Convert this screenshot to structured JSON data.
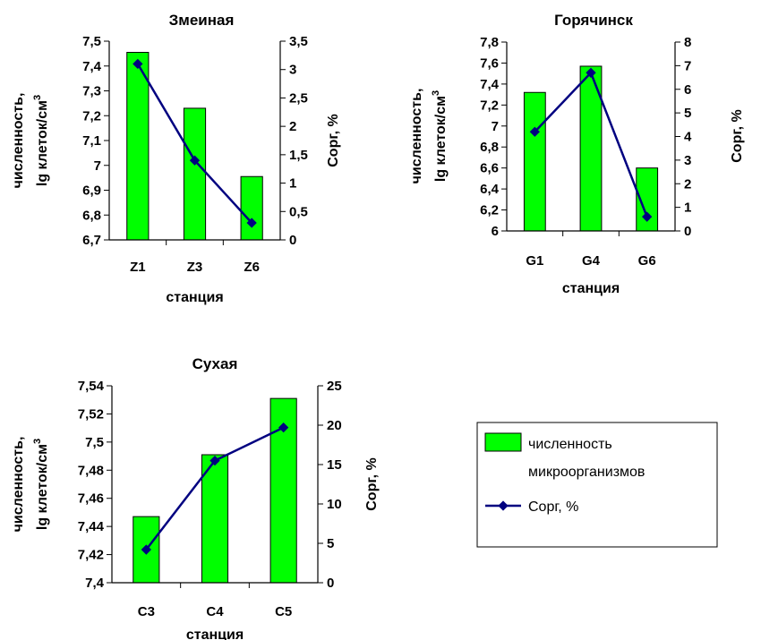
{
  "chart_data": [
    {
      "type": "bar",
      "title": "Змеиная",
      "xlabel": "станция",
      "ylabel_lines": [
        "численность,",
        "lg клеток/см",
        "3"
      ],
      "y2label": "Сорг, %",
      "categories": [
        "Z1",
        "Z3",
        "Z6"
      ],
      "ylim": [
        6.7,
        7.5
      ],
      "yticks": [
        "6,7",
        "6,8",
        "6,9",
        "7",
        "7,1",
        "7,2",
        "7,3",
        "7,4",
        "7,5"
      ],
      "y2lim": [
        0,
        3.5
      ],
      "y2ticks": [
        "0",
        "0,5",
        "1",
        "1,5",
        "2",
        "2,5",
        "3",
        "3,5"
      ],
      "series": [
        {
          "name": "численность микроорганизмов",
          "kind": "bar",
          "axis": "left",
          "values": [
            7.455,
            7.23,
            6.955
          ]
        },
        {
          "name": "Сорг, %",
          "kind": "line",
          "axis": "right",
          "values": [
            3.1,
            1.4,
            0.3
          ]
        }
      ]
    },
    {
      "type": "bar",
      "title": "Горячинск",
      "xlabel": "станция",
      "ylabel_lines": [
        "численность,",
        "lg клеток/см",
        "3"
      ],
      "y2label": "Сорг, %",
      "categories": [
        "G1",
        "G4",
        "G6"
      ],
      "ylim": [
        6,
        7.8
      ],
      "yticks": [
        "6",
        "6,2",
        "6,4",
        "6,6",
        "6,8",
        "7",
        "7,2",
        "7,4",
        "7,6",
        "7,8"
      ],
      "y2lim": [
        0,
        8
      ],
      "y2ticks": [
        "0",
        "1",
        "2",
        "3",
        "4",
        "5",
        "6",
        "7",
        "8"
      ],
      "series": [
        {
          "name": "численность микроорганизмов",
          "kind": "bar",
          "axis": "left",
          "values": [
            7.32,
            7.57,
            6.6
          ]
        },
        {
          "name": "Сорг, %",
          "kind": "line",
          "axis": "right",
          "values": [
            4.2,
            6.7,
            0.6
          ]
        }
      ]
    },
    {
      "type": "bar",
      "title": "Сухая",
      "xlabel": "станция",
      "ylabel_lines": [
        "численность,",
        "lg клеток/см",
        "3"
      ],
      "y2label": "Сорг, %",
      "categories": [
        "C3",
        "C4",
        "C5"
      ],
      "ylim": [
        7.4,
        7.54
      ],
      "yticks": [
        "7,4",
        "7,42",
        "7,44",
        "7,46",
        "7,48",
        "7,5",
        "7,52",
        "7,54"
      ],
      "y2lim": [
        0,
        25
      ],
      "y2ticks": [
        "0",
        "5",
        "10",
        "15",
        "20",
        "25"
      ],
      "series": [
        {
          "name": "численность микроорганизмов",
          "kind": "bar",
          "axis": "left",
          "values": [
            7.447,
            7.491,
            7.531
          ]
        },
        {
          "name": "Сорг, %",
          "kind": "line",
          "axis": "right",
          "values": [
            4.2,
            15.5,
            19.7
          ]
        }
      ]
    }
  ],
  "legend": {
    "bar_label_lines": [
      "численность",
      "микроорганизмов"
    ],
    "line_label": "Сорг, %",
    "colors": {
      "bar": "#00ff00",
      "bar_border": "#000000",
      "line": "#000080"
    }
  }
}
